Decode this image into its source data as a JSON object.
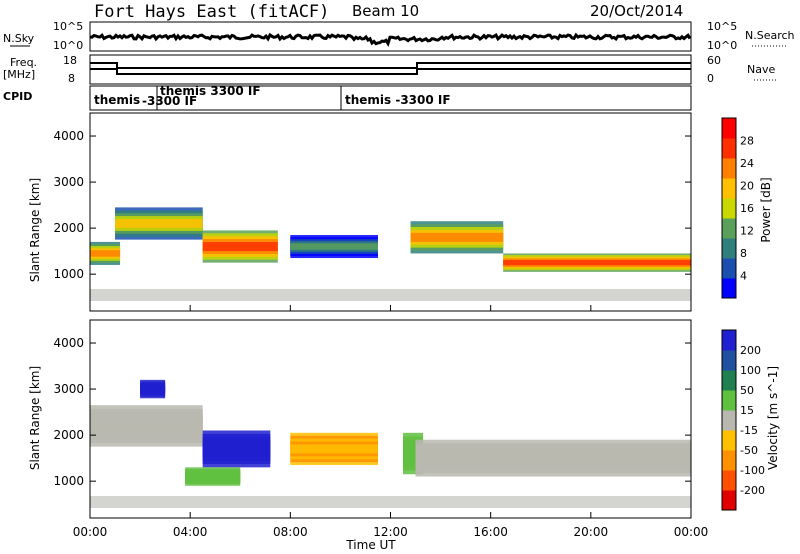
{
  "header": {
    "station": "Fort Hays East (fitACF)",
    "beam": "Beam 10",
    "date": "20/Oct/2014"
  },
  "top_panels": {
    "nsky_label": "N.Sky",
    "nsearch_label": "N.Search",
    "nsky_ticks": [
      "10^5",
      "10^0"
    ],
    "nsearch_ticks": [
      "10^5",
      "10^0"
    ],
    "freq_label": "Freq.",
    "freq_unit": "[MHz]",
    "freq_ticks": [
      "18",
      "8"
    ],
    "nave_label": "Nave",
    "nave_ticks": [
      "60",
      "0"
    ],
    "cpid_label": "CPID",
    "cpid_segments": [
      {
        "label": "themis",
        "start_h": 0.0
      },
      {
        "label": "themis 3300 IF",
        "start_h": 2.75
      },
      {
        "label": "-3300 IF",
        "start_h": 2.75
      },
      {
        "label": "themis -3300 IF",
        "start_h": 10.4
      }
    ]
  },
  "axes": {
    "ylabel": "Slant Range [km]",
    "xlabel": "Time UT",
    "y_ticks": [
      "4000",
      "3000",
      "2000",
      "1000"
    ],
    "x_ticks": [
      "00:00",
      "04:00",
      "08:00",
      "12:00",
      "16:00",
      "20:00",
      "00:00"
    ]
  },
  "colors": {
    "power": [
      "#0000ff",
      "#1a4fb0",
      "#2f7f7f",
      "#5aa05a",
      "#c8d800",
      "#ffc000",
      "#ff8000",
      "#ff3000",
      "#ff0000"
    ],
    "velocity": [
      "#2020d0",
      "#2050a0",
      "#208050",
      "#60c040",
      "#b8b8b0",
      "#ffc000",
      "#ff9000",
      "#ff5000",
      "#e00000"
    ],
    "ground": "#b8b8b0"
  },
  "chart_data": [
    {
      "type": "heatmap",
      "name_label": "Power [dB]",
      "colorbar_ticks": [
        "28",
        "24",
        "20",
        "16",
        "12",
        "8",
        "4"
      ],
      "x_range_hours": [
        0,
        24
      ],
      "y_range_km": [
        200,
        4500
      ],
      "bands": [
        {
          "t_start": 0.0,
          "t_end": 1.2,
          "center_km": 1450,
          "width_km": 500,
          "peak_db": 24
        },
        {
          "t_start": 1.0,
          "t_end": 4.5,
          "center_km": 2100,
          "width_km": 700,
          "peak_db": 20
        },
        {
          "t_start": 4.5,
          "t_end": 7.5,
          "center_km": 1600,
          "width_km": 700,
          "peak_db": 28
        },
        {
          "t_start": 8.0,
          "t_end": 11.5,
          "center_km": 1600,
          "width_km": 500,
          "peak_db": 12
        },
        {
          "t_start": 12.8,
          "t_end": 16.5,
          "center_km": 1800,
          "width_km": 700,
          "peak_db": 24
        },
        {
          "t_start": 16.5,
          "t_end": 24.0,
          "center_km": 1250,
          "width_km": 400,
          "peak_db": 28
        }
      ]
    },
    {
      "type": "heatmap",
      "name_label": "Velocity [m s^-1]",
      "colorbar_ticks": [
        "200",
        "100",
        "50",
        "15",
        "-15",
        "-50",
        "-100",
        "-200"
      ],
      "x_range_hours": [
        0,
        24
      ],
      "y_range_km": [
        200,
        4500
      ],
      "regions": [
        {
          "t_start": 0.0,
          "t_end": 4.5,
          "center_km": 2200,
          "width_km": 900,
          "velocity": 0
        },
        {
          "t_start": 2.0,
          "t_end": 3.0,
          "center_km": 3000,
          "width_km": 400,
          "velocity": 200
        },
        {
          "t_start": 4.5,
          "t_end": 7.2,
          "center_km": 1700,
          "width_km": 800,
          "velocity": 200
        },
        {
          "t_start": 3.8,
          "t_end": 6.0,
          "center_km": 1100,
          "width_km": 400,
          "velocity": 50
        },
        {
          "t_start": 8.0,
          "t_end": 11.5,
          "center_km": 1700,
          "width_km": 700,
          "velocity": -50
        },
        {
          "t_start": 12.5,
          "t_end": 13.3,
          "center_km": 1600,
          "width_km": 900,
          "velocity": 50
        },
        {
          "t_start": 13.0,
          "t_end": 24.0,
          "center_km": 1500,
          "width_km": 800,
          "velocity": 0
        }
      ]
    }
  ]
}
